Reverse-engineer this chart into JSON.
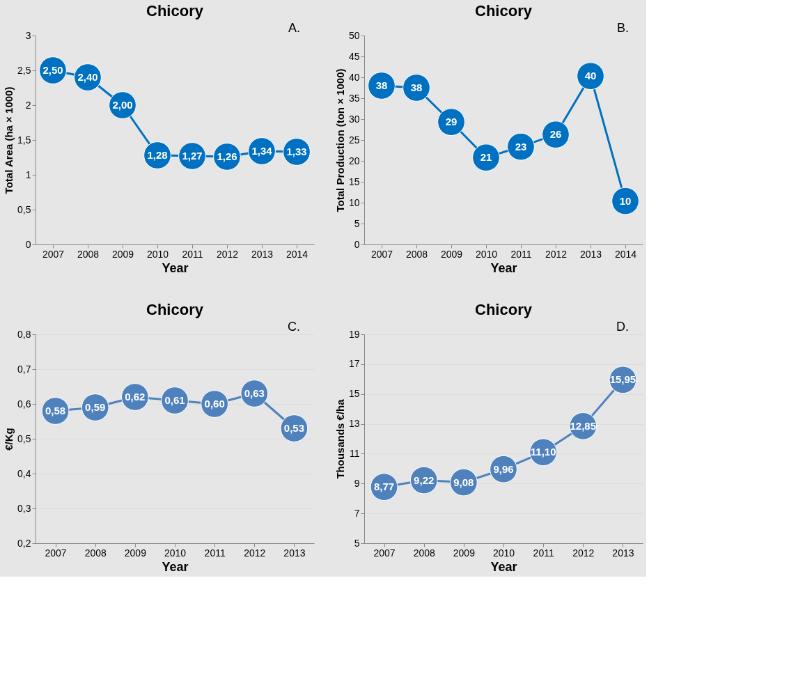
{
  "chart_data": [
    {
      "type": "line",
      "title": "Chicory",
      "xlabel": "Year",
      "ylabel": "Total Area (ha × 1000)",
      "annotations": [
        "A."
      ],
      "categories": [
        "2007",
        "2008",
        "2009",
        "2010",
        "2011",
        "2012",
        "2013",
        "2014"
      ],
      "values": [
        2.5,
        2.4,
        2.0,
        1.28,
        1.27,
        1.26,
        1.34,
        1.33
      ],
      "value_labels": [
        "2,50",
        "2,40",
        "2,00",
        "1,28",
        "1,27",
        "1,26",
        "1,34",
        "1,33"
      ],
      "color": "#0070c0",
      "marker": "circle",
      "line_style": "solid",
      "grid": false,
      "ylim": [
        0,
        3
      ],
      "yticks": [
        0,
        {
          "value": 0.5,
          "label": "0,5"
        },
        1,
        {
          "value": 1.5,
          "label": "1,5"
        },
        2,
        {
          "value": 2.5,
          "label": "2,5"
        },
        3
      ]
    },
    {
      "type": "line",
      "title": "Chicory",
      "xlabel": "Year",
      "ylabel": "Total Production (ton × 1000)",
      "annotations": [
        "B."
      ],
      "categories": [
        "2007",
        "2008",
        "2009",
        "2010",
        "2011",
        "2012",
        "2013",
        "2014"
      ],
      "values": [
        38,
        37.5,
        29.3,
        20.8,
        23.4,
        26.3,
        40.3,
        10.4
      ],
      "value_labels": [
        "38",
        "38",
        "29",
        "21",
        "23",
        "26",
        "40",
        "10"
      ],
      "color": "#0070c0",
      "marker": "circle",
      "line_style": "solid",
      "grid": false,
      "ylim": [
        0,
        50
      ],
      "yticks": [
        0,
        5,
        10,
        15,
        20,
        25,
        30,
        35,
        40,
        45,
        50
      ]
    },
    {
      "type": "line",
      "title": "Chicory",
      "xlabel": "Year",
      "ylabel": "€/Kg",
      "annotations": [
        "C."
      ],
      "categories": [
        "2007",
        "2008",
        "2009",
        "2010",
        "2011",
        "2012",
        "2013"
      ],
      "values": [
        0.58,
        0.59,
        0.62,
        0.61,
        0.6,
        0.63,
        0.53
      ],
      "value_labels": [
        "0,58",
        "0,59",
        "0,62",
        "0,61",
        "0,60",
        "0,63",
        "0,53"
      ],
      "color": "#4f81bd",
      "marker": "circle",
      "line_style": "solid",
      "grid": "y",
      "ylim": [
        0.2,
        0.8
      ],
      "yticks": [
        {
          "value": 0.2,
          "label": "0,2"
        },
        {
          "value": 0.3,
          "label": "0,3"
        },
        {
          "value": 0.4,
          "label": "0,4"
        },
        {
          "value": 0.5,
          "label": "0,5"
        },
        {
          "value": 0.6,
          "label": "0,6"
        },
        {
          "value": 0.7,
          "label": "0,7"
        },
        {
          "value": 0.8,
          "label": "0,8"
        }
      ]
    },
    {
      "type": "line",
      "title": "Chicory",
      "xlabel": "Year",
      "ylabel": "Thousands €/ha",
      "annotations": [
        "D."
      ],
      "categories": [
        "2007",
        "2008",
        "2009",
        "2010",
        "2011",
        "2012",
        "2013"
      ],
      "values": [
        8.77,
        9.22,
        9.08,
        9.96,
        11.1,
        12.85,
        15.95
      ],
      "value_labels": [
        "8,77",
        "9,22",
        "9,08",
        "9,96",
        "11,10",
        "12,85",
        "15,95"
      ],
      "color": "#4f81bd",
      "marker": "circle",
      "line_style": "solid",
      "grid": "y",
      "ylim": [
        5,
        19
      ],
      "yticks": [
        5,
        7,
        9,
        11,
        13,
        15,
        17,
        19
      ]
    }
  ]
}
